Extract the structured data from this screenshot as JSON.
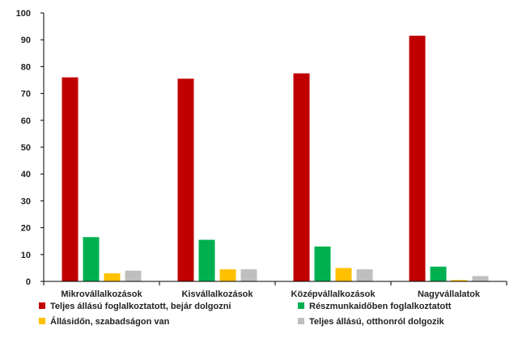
{
  "chart_data": {
    "type": "bar",
    "categories": [
      "Mikrovállalkozások",
      "Kisvállalkozások",
      "Középvállalkozások",
      "Nagyvállalatok"
    ],
    "series": [
      {
        "name": "Teljes állású foglalkoztatott, bejár dolgozni",
        "color": "#c00000",
        "values": [
          76,
          75.5,
          77.5,
          91.5
        ]
      },
      {
        "name": "Részmunkaidőben foglalkoztatott",
        "color": "#00b050",
        "values": [
          16.5,
          15.5,
          13,
          5.5
        ]
      },
      {
        "name": "Állásidőn, szabadságon van",
        "color": "#ffc000",
        "values": [
          3,
          4.5,
          5,
          0.5
        ]
      },
      {
        "name": "Teljes állású, otthonról dolgozik",
        "color": "#bfbfbf",
        "values": [
          4,
          4.5,
          4.5,
          2
        ]
      }
    ],
    "ylim": [
      0,
      100
    ],
    "yticks": [
      0,
      10,
      20,
      30,
      40,
      50,
      60,
      70,
      80,
      90,
      100
    ],
    "grid": false,
    "legend_position": "bottom",
    "title": "",
    "xlabel": "",
    "ylabel": ""
  }
}
